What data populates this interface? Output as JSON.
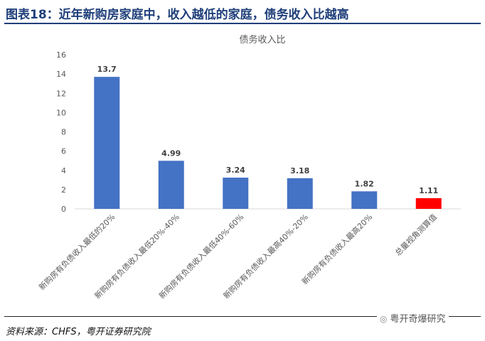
{
  "header": {
    "title": "图表18：近年新购房家庭中，收入越低的家庭，债务收入比越高"
  },
  "footer": {
    "source": "资料来源：CHFS，粤开证券研究院"
  },
  "watermark": {
    "icon": "wechat-icon",
    "text": "粤开奇爆研究"
  },
  "chart_data": {
    "type": "bar",
    "title": "债务收入比",
    "categories": [
      "新购房有负债收入最低的20%",
      "新购房有负债收入最低20%-40%",
      "新购房有负债收入最低40%-60%",
      "新购房有负债收入最高40%-20%",
      "新购房有负债收入最高20%",
      "总量视角测算值"
    ],
    "values": [
      13.7,
      4.99,
      3.24,
      3.18,
      1.82,
      1.11
    ],
    "value_labels": [
      "13.7",
      "4.99",
      "3.24",
      "3.18",
      "1.82",
      "1.11"
    ],
    "colors": [
      "#4472c4",
      "#4472c4",
      "#4472c4",
      "#4472c4",
      "#4472c4",
      "#ff0000"
    ],
    "ylim": [
      0,
      16
    ],
    "yticks": [
      0,
      2,
      4,
      6,
      8,
      10,
      12,
      14,
      16
    ],
    "grid": false,
    "legend": "none"
  }
}
